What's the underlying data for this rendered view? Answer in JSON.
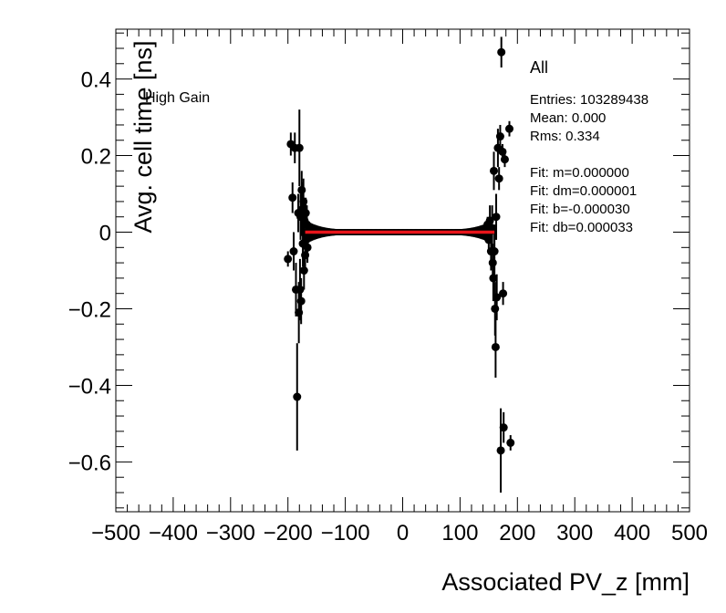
{
  "chart_data": {
    "type": "scatter",
    "title": "",
    "xlabel": "Associated PV_z [mm]",
    "ylabel": "Avg. cell time [ns]",
    "xlim": [
      -500,
      500
    ],
    "ylim": [
      -0.73,
      0.53
    ],
    "x_ticks": [
      -500,
      -400,
      -300,
      -200,
      -100,
      0,
      100,
      200,
      300,
      400,
      500
    ],
    "x_tick_labels": [
      "−500",
      "−400",
      "−300",
      "−200",
      "−100",
      "0",
      "100",
      "200",
      "300",
      "400",
      "500"
    ],
    "y_ticks": [
      -0.6,
      -0.4,
      -0.2,
      0,
      0.2,
      0.4
    ],
    "y_tick_labels": [
      "−0.6",
      "−0.4",
      "−0.2",
      "0",
      "0.2",
      "0.4"
    ],
    "annotation": "High Gain",
    "stats_box": {
      "title": "All",
      "entries": "Entries: 103289438",
      "mean": "Mean: 0.000",
      "rms": "Rms: 0.334",
      "fit_m": "Fit: m=0.000000",
      "fit_dm": "Fit: dm=0.000001",
      "fit_b": "Fit: b=-0.000030",
      "fit_db": "Fit: db=0.000033"
    },
    "fit_line": {
      "x": [
        -170,
        160
      ],
      "y": [
        -0.0001,
        -0.0001
      ],
      "color": "#e8141a"
    },
    "dense_band": {
      "x_min": -168,
      "x_max": 155,
      "y_center": 0.0,
      "half_width_center": 0.006,
      "half_width_edge": 0.03
    },
    "series": [
      {
        "name": "All",
        "color": "#000000",
        "points": [
          {
            "x": -200,
            "y": -0.07,
            "err": 0.02
          },
          {
            "x": -195,
            "y": 0.23,
            "err": 0.03
          },
          {
            "x": -192,
            "y": 0.09,
            "err": 0.04
          },
          {
            "x": -190,
            "y": -0.05,
            "err": 0.05
          },
          {
            "x": -188,
            "y": 0.22,
            "err": 0.04
          },
          {
            "x": -186,
            "y": -0.15,
            "err": 0.07
          },
          {
            "x": -184,
            "y": -0.43,
            "err": 0.14
          },
          {
            "x": -182,
            "y": 0.05,
            "err": 0.05
          },
          {
            "x": -181,
            "y": -0.21,
            "err": 0.08
          },
          {
            "x": -180,
            "y": 0.22,
            "err": 0.1
          },
          {
            "x": -179,
            "y": -0.15,
            "err": 0.08
          },
          {
            "x": -178,
            "y": 0.04,
            "err": 0.06
          },
          {
            "x": -177,
            "y": -0.18,
            "err": 0.06
          },
          {
            "x": -176,
            "y": 0.11,
            "err": 0.05
          },
          {
            "x": -175,
            "y": 0.06,
            "err": 0.07
          },
          {
            "x": -174,
            "y": -0.03,
            "err": 0.06
          },
          {
            "x": -173,
            "y": 0.08,
            "err": 0.06
          },
          {
            "x": -172,
            "y": -0.1,
            "err": 0.05
          },
          {
            "x": -171,
            "y": 0.03,
            "err": 0.05
          },
          {
            "x": -170,
            "y": -0.06,
            "err": 0.05
          },
          {
            "x": -169,
            "y": 0.05,
            "err": 0.04
          },
          {
            "x": -168,
            "y": -0.02,
            "err": 0.04
          },
          {
            "x": -167,
            "y": 0.02,
            "err": 0.05
          },
          {
            "x": -166,
            "y": -0.04,
            "err": 0.04
          },
          {
            "x": 148,
            "y": 0.02,
            "err": 0.02
          },
          {
            "x": 150,
            "y": -0.02,
            "err": 0.03
          },
          {
            "x": 152,
            "y": 0.03,
            "err": 0.04
          },
          {
            "x": 154,
            "y": -0.05,
            "err": 0.05
          },
          {
            "x": 156,
            "y": 0.01,
            "err": 0.06
          },
          {
            "x": 157,
            "y": -0.08,
            "err": 0.05
          },
          {
            "x": 158,
            "y": -0.12,
            "err": 0.06
          },
          {
            "x": 159,
            "y": 0.16,
            "err": 0.05
          },
          {
            "x": 160,
            "y": -0.05,
            "err": 0.07
          },
          {
            "x": 161,
            "y": -0.2,
            "err": 0.07
          },
          {
            "x": 162,
            "y": -0.3,
            "err": 0.08
          },
          {
            "x": 163,
            "y": 0.04,
            "err": 0.06
          },
          {
            "x": 164,
            "y": -0.17,
            "err": 0.06
          },
          {
            "x": 166,
            "y": 0.22,
            "err": 0.05
          },
          {
            "x": 168,
            "y": 0.14,
            "err": 0.03
          },
          {
            "x": 170,
            "y": 0.25,
            "err": 0.03
          },
          {
            "x": 171,
            "y": -0.57,
            "err": 0.11
          },
          {
            "x": 172,
            "y": 0.47,
            "err": 0.04
          },
          {
            "x": 174,
            "y": 0.21,
            "err": 0.02
          },
          {
            "x": 175,
            "y": -0.16,
            "err": 0.03
          },
          {
            "x": 176,
            "y": -0.51,
            "err": 0.04
          },
          {
            "x": 178,
            "y": 0.19,
            "err": 0.02
          },
          {
            "x": 186,
            "y": 0.27,
            "err": 0.02
          },
          {
            "x": 188,
            "y": -0.55,
            "err": 0.02
          }
        ]
      }
    ]
  }
}
